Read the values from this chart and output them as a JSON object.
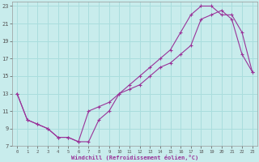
{
  "xlabel": "Windchill (Refroidissement éolien,°C)",
  "bg_color": "#c8ecec",
  "grid_color": "#aadddd",
  "line_color": "#993399",
  "xlim": [
    -0.5,
    23.5
  ],
  "ylim": [
    7,
    23.5
  ],
  "xticks": [
    0,
    1,
    2,
    3,
    4,
    5,
    6,
    7,
    8,
    9,
    10,
    11,
    12,
    13,
    14,
    15,
    16,
    17,
    18,
    19,
    20,
    21,
    22,
    23
  ],
  "yticks": [
    7,
    9,
    11,
    13,
    15,
    17,
    19,
    21,
    23
  ],
  "line1_x": [
    0,
    1,
    2,
    3,
    4,
    5,
    6,
    7,
    8,
    9,
    10,
    11,
    12,
    13,
    14,
    15,
    16,
    17,
    18,
    19,
    20,
    21,
    22,
    23
  ],
  "line1_y": [
    13,
    10,
    9.5,
    9,
    8,
    8,
    7.5,
    7.5,
    10,
    11,
    13,
    14,
    15,
    16,
    17,
    18,
    20,
    22,
    23,
    23,
    22,
    22,
    20,
    15.5
  ],
  "line2_x": [
    0,
    1,
    2,
    3,
    4,
    5,
    6,
    7,
    8,
    9,
    10,
    11,
    12,
    13,
    14,
    15,
    16,
    17,
    18,
    19,
    20,
    21,
    22,
    23
  ],
  "line2_y": [
    13,
    10,
    9.5,
    9,
    8,
    8,
    7.5,
    11,
    11.5,
    12,
    13,
    13.5,
    14,
    15,
    16,
    16.5,
    17.5,
    18.5,
    21.5,
    22,
    22.5,
    21.5,
    17.5,
    15.5
  ]
}
